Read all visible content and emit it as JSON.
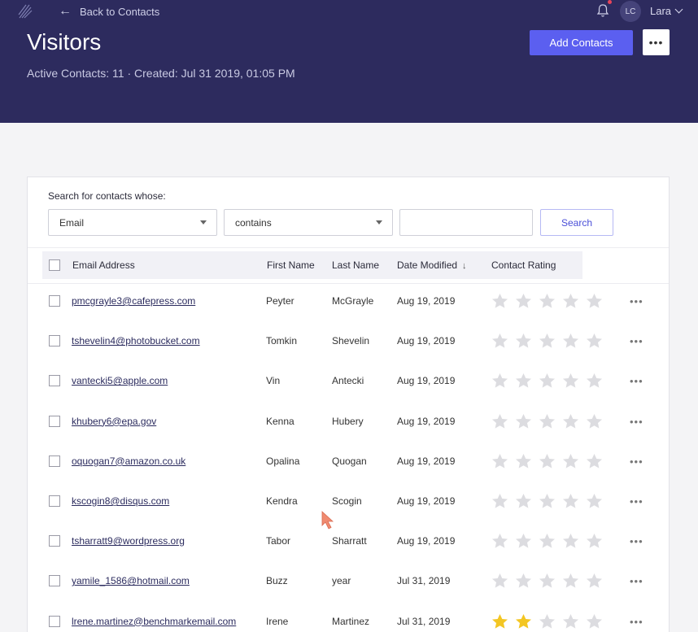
{
  "header": {
    "back_label": "Back to Contacts",
    "title": "Visitors",
    "meta": "Active Contacts: 11  ·  Created: Jul 31 2019, 01:05 PM",
    "avatar_initials": "LC",
    "user_name": "Lara",
    "add_button": "Add Contacts",
    "more_button": "•••",
    "bg_color": "#2d2b5e",
    "accent_color": "#5b5ff0"
  },
  "search": {
    "label": "Search for contacts whose:",
    "field": "Email",
    "operator": "contains",
    "value": "",
    "button": "Search"
  },
  "table": {
    "columns": [
      "Email Address",
      "First Name",
      "Last Name",
      "Date Modified",
      "Contact Rating"
    ],
    "sort_indicator": "↓",
    "rows": [
      {
        "email": "pmcgrayle3@cafepress.com",
        "first": "Peyter",
        "last": "McGrayle",
        "date": "Aug 19, 2019",
        "rating": 0
      },
      {
        "email": "tshevelin4@photobucket.com",
        "first": "Tomkin",
        "last": "Shevelin",
        "date": "Aug 19, 2019",
        "rating": 0
      },
      {
        "email": "vantecki5@apple.com",
        "first": "Vin",
        "last": "Antecki",
        "date": "Aug 19, 2019",
        "rating": 0
      },
      {
        "email": "khubery6@epa.gov",
        "first": "Kenna",
        "last": "Hubery",
        "date": "Aug 19, 2019",
        "rating": 0
      },
      {
        "email": "oquogan7@amazon.co.uk",
        "first": "Opalina",
        "last": "Quogan",
        "date": "Aug 19, 2019",
        "rating": 0
      },
      {
        "email": "kscogin8@disqus.com",
        "first": "Kendra",
        "last": "Scogin",
        "date": "Aug 19, 2019",
        "rating": 0
      },
      {
        "email": "tsharratt9@wordpress.org",
        "first": "Tabor",
        "last": "Sharratt",
        "date": "Aug 19, 2019",
        "rating": 0
      },
      {
        "email": "yamile_1586@hotmail.com",
        "first": "Buzz",
        "last": "year",
        "date": "Jul 31, 2019",
        "rating": 0
      },
      {
        "email": "lrene.martinez@benchmarkemail.com",
        "first": "Irene",
        "last": "Martinez",
        "date": "Jul 31, 2019",
        "rating": 2
      }
    ],
    "row_more": "•••",
    "star_empty_color": "#dcdce0",
    "star_filled_color": "#f3c623"
  }
}
